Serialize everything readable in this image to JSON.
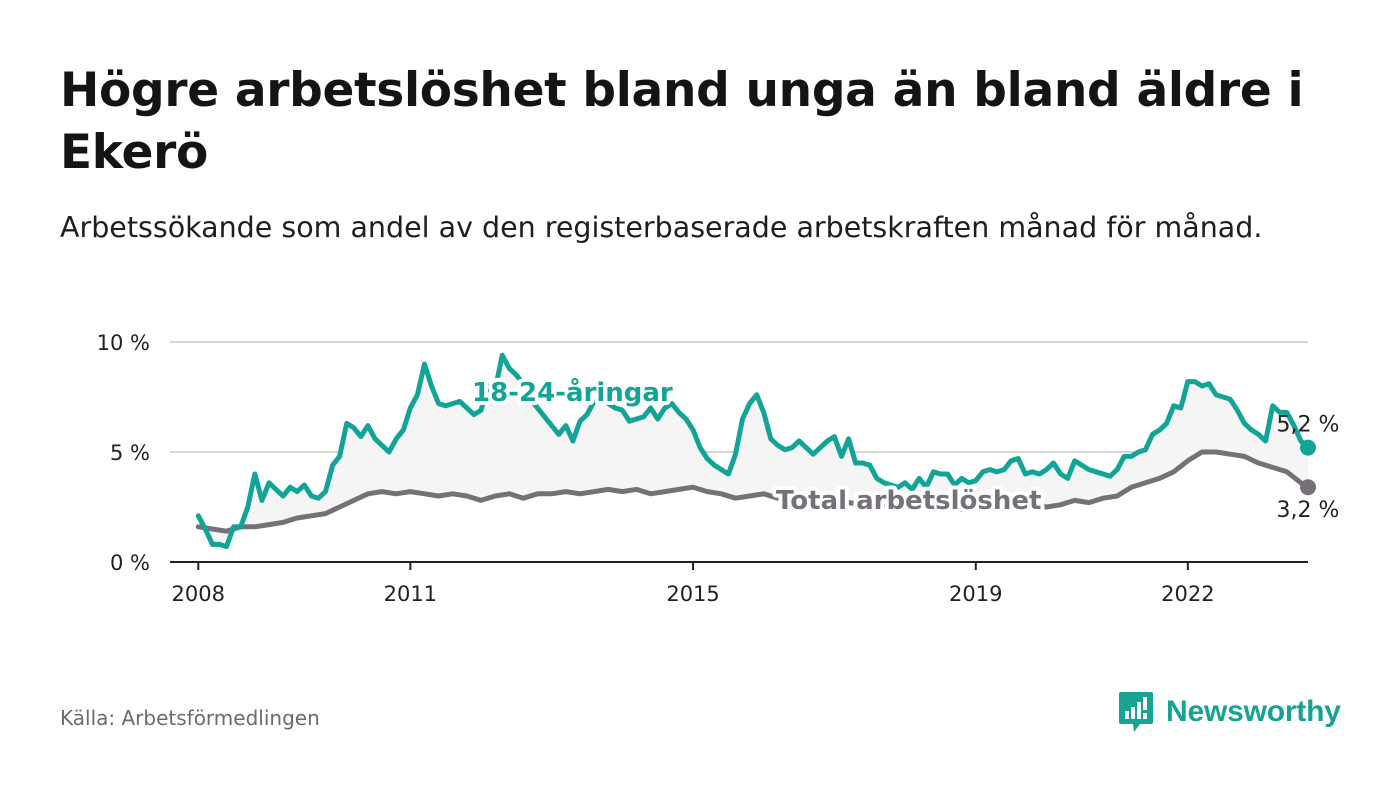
{
  "title": "Högre arbetslöshet bland unga än bland äldre i Ekerö",
  "subtitle": "Arbetssökande som andel av den registerbaserade arbetskraften månad för månad.",
  "source": "Källa: Arbetsförmedlingen",
  "brand": "Newsworthy",
  "colors": {
    "young": "#12a496",
    "total": "#767179",
    "band": "#f5f5f5",
    "grid": "#d6d6d6",
    "axis": "#222222",
    "brand": "#16a394"
  },
  "chart_data": {
    "type": "line",
    "ylim": [
      0,
      10
    ],
    "xlim": [
      2007.6,
      2023.7
    ],
    "y_ticks": [
      {
        "value": 0,
        "label": "0 %"
      },
      {
        "value": 5,
        "label": "5 %"
      },
      {
        "value": 10,
        "label": "10 %"
      }
    ],
    "x_ticks": [
      {
        "value": 2008,
        "label": "2008"
      },
      {
        "value": 2011,
        "label": "2011"
      },
      {
        "value": 2015,
        "label": "2015"
      },
      {
        "value": 2019,
        "label": "2019"
      },
      {
        "value": 2022,
        "label": "2022"
      }
    ],
    "grid": true,
    "series": [
      {
        "name": "18-24-åringar",
        "label": "18-24-åringar",
        "end_label": "5,2 %",
        "points": [
          [
            2008.0,
            2.1
          ],
          [
            2008.1,
            1.5
          ],
          [
            2008.2,
            0.8
          ],
          [
            2008.3,
            0.8
          ],
          [
            2008.4,
            0.7
          ],
          [
            2008.5,
            1.6
          ],
          [
            2008.6,
            1.6
          ],
          [
            2008.7,
            2.5
          ],
          [
            2008.8,
            4.0
          ],
          [
            2008.9,
            2.8
          ],
          [
            2009.0,
            3.6
          ],
          [
            2009.1,
            3.3
          ],
          [
            2009.2,
            3.0
          ],
          [
            2009.3,
            3.4
          ],
          [
            2009.4,
            3.2
          ],
          [
            2009.5,
            3.5
          ],
          [
            2009.6,
            3.0
          ],
          [
            2009.7,
            2.9
          ],
          [
            2009.8,
            3.2
          ],
          [
            2009.9,
            4.4
          ],
          [
            2010.0,
            4.8
          ],
          [
            2010.1,
            6.3
          ],
          [
            2010.2,
            6.1
          ],
          [
            2010.3,
            5.7
          ],
          [
            2010.4,
            6.2
          ],
          [
            2010.5,
            5.6
          ],
          [
            2010.6,
            5.3
          ],
          [
            2010.7,
            5.0
          ],
          [
            2010.8,
            5.6
          ],
          [
            2010.9,
            6.0
          ],
          [
            2011.0,
            7.0
          ],
          [
            2011.1,
            7.6
          ],
          [
            2011.2,
            9.0
          ],
          [
            2011.3,
            8.0
          ],
          [
            2011.4,
            7.2
          ],
          [
            2011.5,
            7.1
          ],
          [
            2011.6,
            7.2
          ],
          [
            2011.7,
            7.3
          ],
          [
            2011.8,
            7.0
          ],
          [
            2011.9,
            6.7
          ],
          [
            2012.0,
            6.9
          ],
          [
            2012.1,
            8.0
          ],
          [
            2012.2,
            7.8
          ],
          [
            2012.3,
            9.4
          ],
          [
            2012.4,
            8.8
          ],
          [
            2012.5,
            8.5
          ],
          [
            2012.6,
            8.1
          ],
          [
            2012.7,
            7.4
          ],
          [
            2012.8,
            7.0
          ],
          [
            2012.9,
            6.6
          ],
          [
            2013.0,
            6.2
          ],
          [
            2013.1,
            5.8
          ],
          [
            2013.2,
            6.2
          ],
          [
            2013.3,
            5.5
          ],
          [
            2013.4,
            6.4
          ],
          [
            2013.5,
            6.7
          ],
          [
            2013.6,
            7.3
          ],
          [
            2013.7,
            7.5
          ],
          [
            2013.8,
            7.2
          ],
          [
            2013.9,
            7.0
          ],
          [
            2014.0,
            6.9
          ],
          [
            2014.1,
            6.4
          ],
          [
            2014.2,
            6.5
          ],
          [
            2014.3,
            6.6
          ],
          [
            2014.4,
            7.0
          ],
          [
            2014.5,
            6.5
          ],
          [
            2014.6,
            7.0
          ],
          [
            2014.7,
            7.2
          ],
          [
            2014.8,
            6.8
          ],
          [
            2014.9,
            6.5
          ],
          [
            2015.0,
            6.0
          ],
          [
            2015.1,
            5.2
          ],
          [
            2015.2,
            4.7
          ],
          [
            2015.3,
            4.4
          ],
          [
            2015.4,
            4.2
          ],
          [
            2015.5,
            4.0
          ],
          [
            2015.6,
            4.9
          ],
          [
            2015.7,
            6.5
          ],
          [
            2015.8,
            7.2
          ],
          [
            2015.9,
            7.6
          ],
          [
            2016.0,
            6.8
          ],
          [
            2016.1,
            5.6
          ],
          [
            2016.2,
            5.3
          ],
          [
            2016.3,
            5.1
          ],
          [
            2016.4,
            5.2
          ],
          [
            2016.5,
            5.5
          ],
          [
            2016.6,
            5.2
          ],
          [
            2016.7,
            4.9
          ],
          [
            2016.8,
            5.2
          ],
          [
            2016.9,
            5.5
          ],
          [
            2017.0,
            5.7
          ],
          [
            2017.1,
            4.8
          ],
          [
            2017.2,
            5.6
          ],
          [
            2017.3,
            4.5
          ],
          [
            2017.4,
            4.5
          ],
          [
            2017.5,
            4.4
          ],
          [
            2017.6,
            3.8
          ],
          [
            2017.7,
            3.6
          ],
          [
            2017.8,
            3.5
          ],
          [
            2017.9,
            3.4
          ],
          [
            2018.0,
            3.6
          ],
          [
            2018.1,
            3.3
          ],
          [
            2018.2,
            3.8
          ],
          [
            2018.3,
            3.4
          ],
          [
            2018.4,
            4.1
          ],
          [
            2018.5,
            4.0
          ],
          [
            2018.6,
            4.0
          ],
          [
            2018.7,
            3.5
          ],
          [
            2018.8,
            3.8
          ],
          [
            2018.9,
            3.6
          ],
          [
            2019.0,
            3.7
          ],
          [
            2019.1,
            4.1
          ],
          [
            2019.2,
            4.2
          ],
          [
            2019.3,
            4.1
          ],
          [
            2019.4,
            4.2
          ],
          [
            2019.5,
            4.6
          ],
          [
            2019.6,
            4.7
          ],
          [
            2019.7,
            4.0
          ],
          [
            2019.8,
            4.1
          ],
          [
            2019.9,
            4.0
          ],
          [
            2020.0,
            4.2
          ],
          [
            2020.1,
            4.5
          ],
          [
            2020.2,
            4.0
          ],
          [
            2020.3,
            3.8
          ],
          [
            2020.4,
            4.6
          ],
          [
            2020.5,
            4.4
          ],
          [
            2020.6,
            4.2
          ],
          [
            2020.7,
            4.1
          ],
          [
            2020.8,
            4.0
          ],
          [
            2020.9,
            3.9
          ],
          [
            2021.0,
            4.2
          ],
          [
            2021.1,
            4.8
          ],
          [
            2021.2,
            4.8
          ],
          [
            2021.3,
            5.0
          ],
          [
            2021.4,
            5.1
          ],
          [
            2021.5,
            5.8
          ],
          [
            2021.6,
            6.0
          ],
          [
            2021.7,
            6.3
          ],
          [
            2021.8,
            7.1
          ],
          [
            2021.9,
            7.0
          ],
          [
            2022.0,
            8.2
          ],
          [
            2022.1,
            8.2
          ],
          [
            2022.2,
            8.0
          ],
          [
            2022.3,
            8.1
          ],
          [
            2022.4,
            7.6
          ],
          [
            2022.5,
            7.5
          ],
          [
            2022.6,
            7.4
          ],
          [
            2022.7,
            6.9
          ],
          [
            2022.8,
            6.3
          ],
          [
            2022.9,
            6.0
          ],
          [
            2023.0,
            5.8
          ],
          [
            2023.1,
            5.5
          ],
          [
            2023.2,
            7.1
          ],
          [
            2023.3,
            6.8
          ],
          [
            2023.4,
            6.8
          ],
          [
            2023.5,
            6.2
          ],
          [
            2023.6,
            5.5
          ],
          [
            2023.7,
            5.2
          ]
        ]
      },
      {
        "name": "Total arbetslöshet",
        "label": "Total arbetslöshet",
        "end_label": "3,2 %",
        "points": []
      }
    ]
  }
}
